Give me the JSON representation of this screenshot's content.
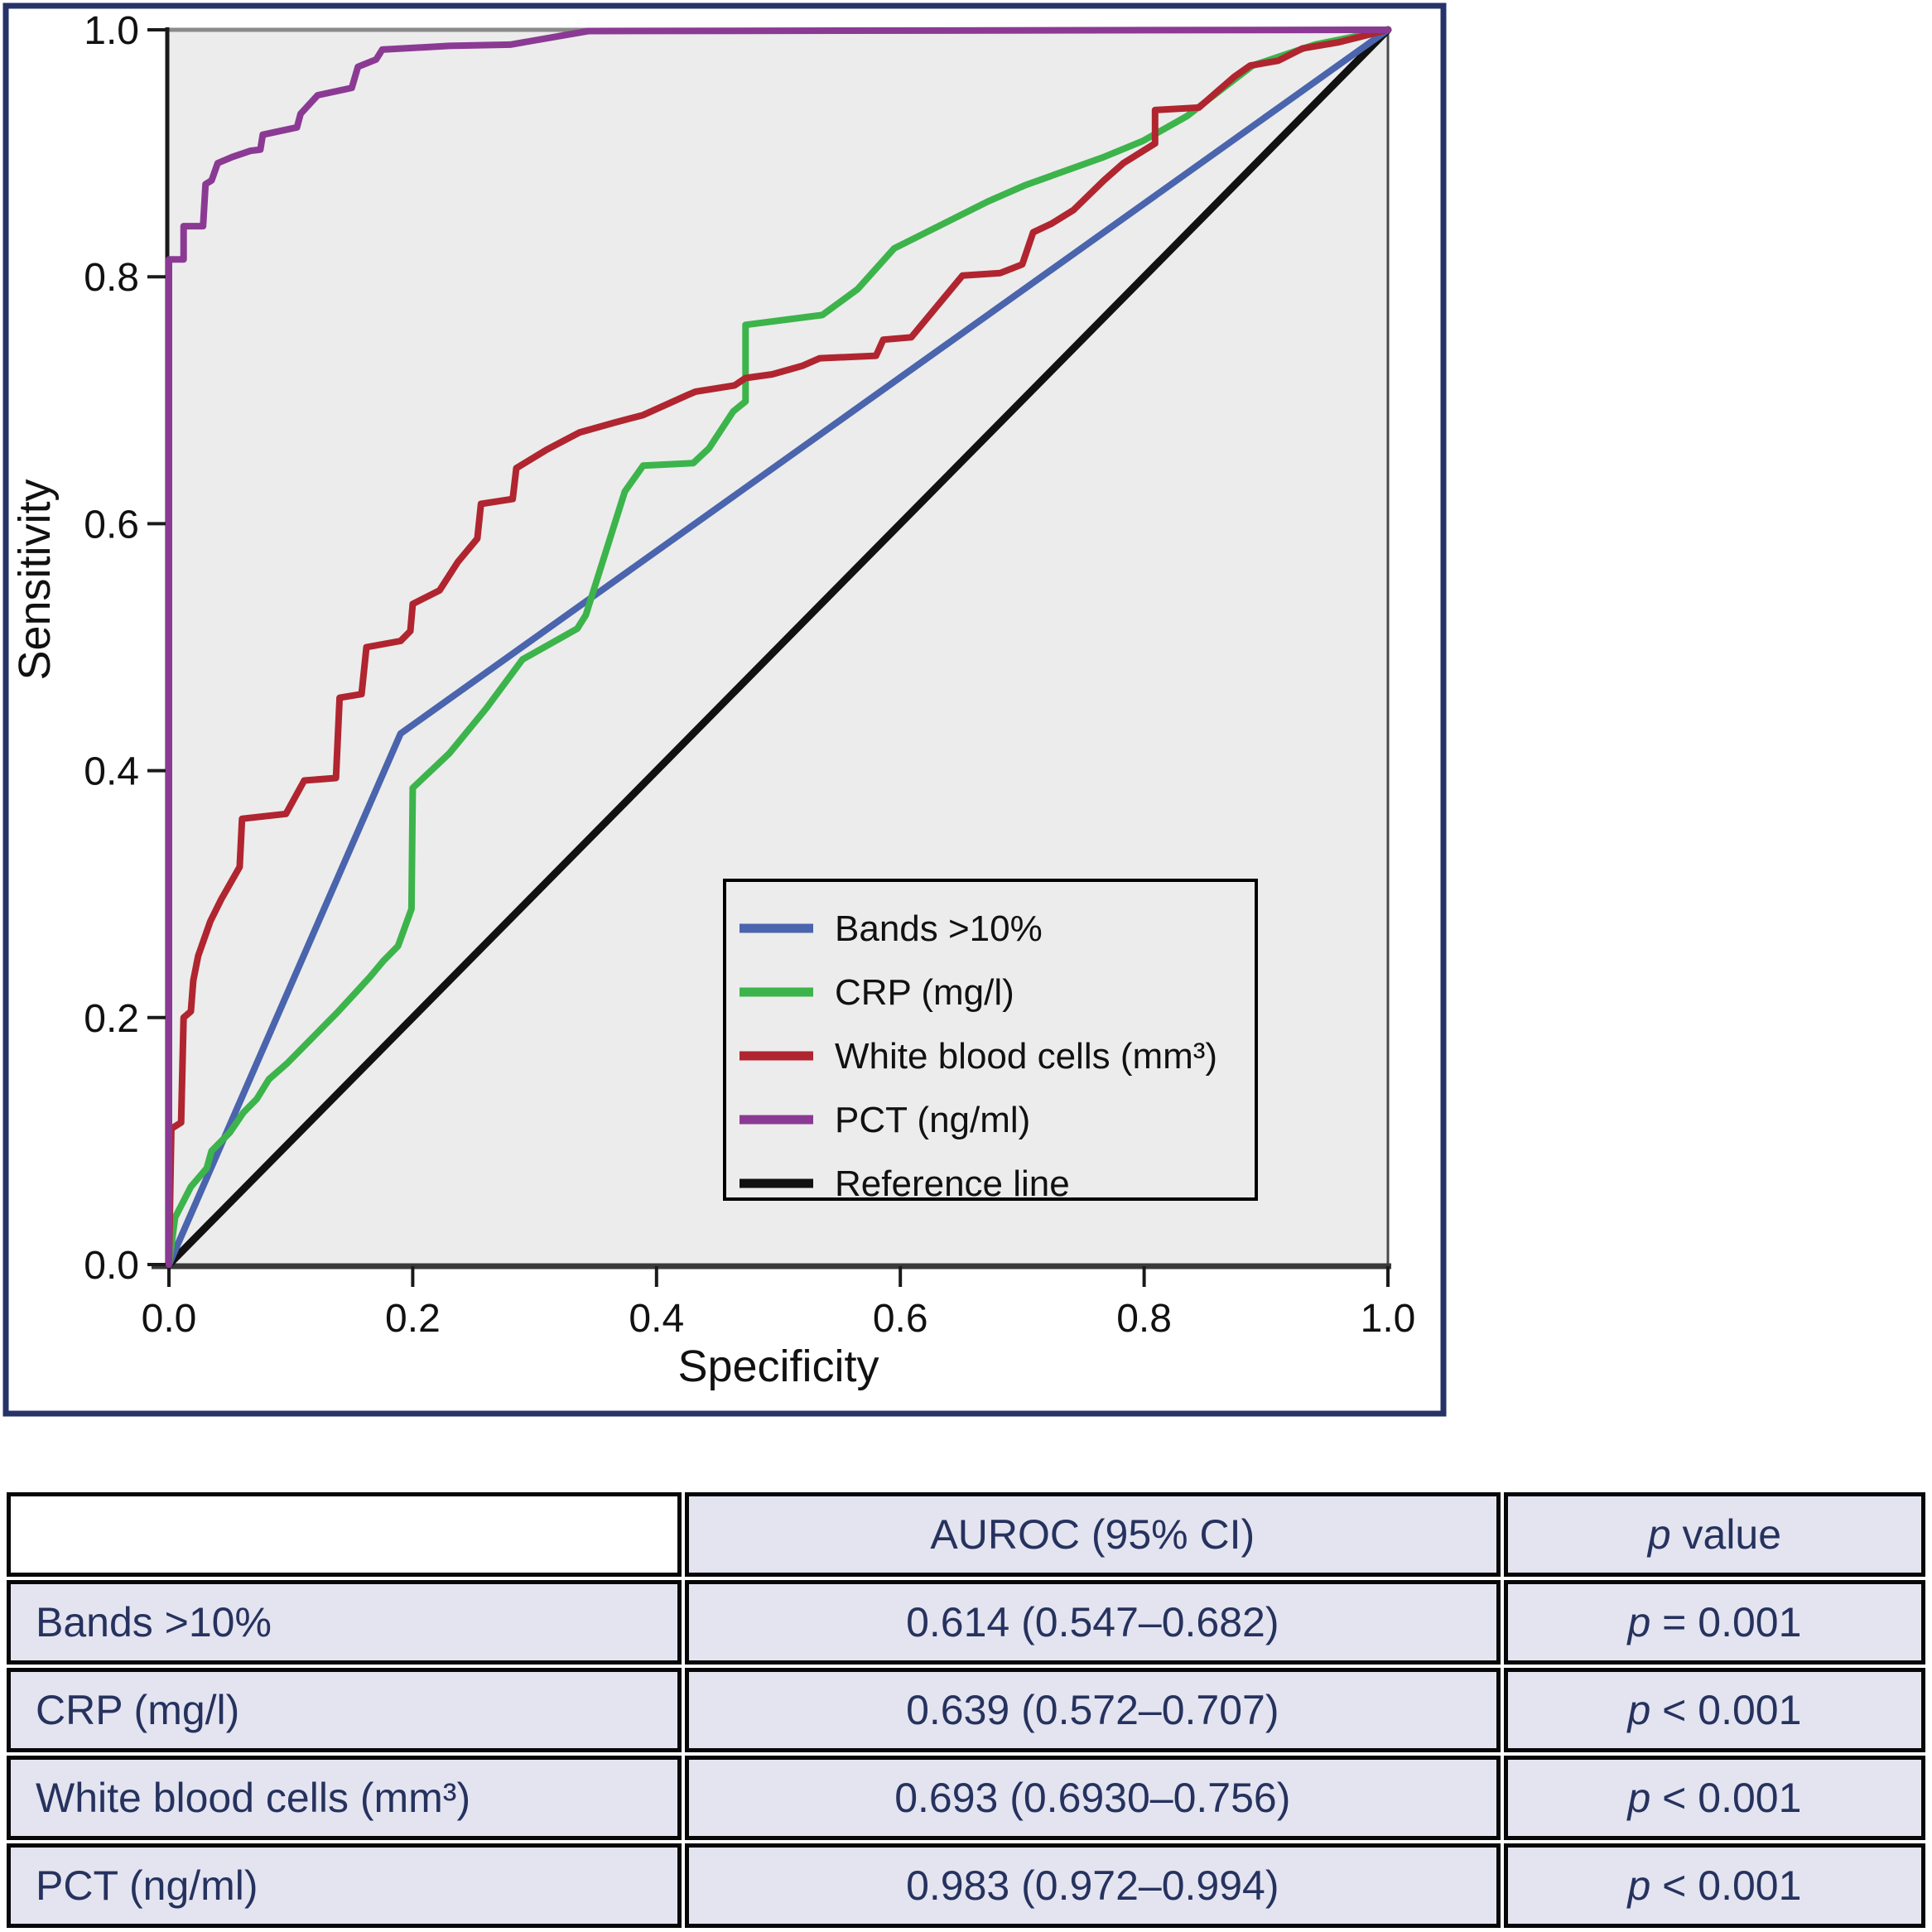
{
  "figure": {
    "x_axis": {
      "label": "Specificity",
      "ticks": [
        "0.0",
        "0.2",
        "0.4",
        "0.6",
        "0.8",
        "1.0"
      ]
    },
    "y_axis": {
      "label": "Sensitivity",
      "ticks": [
        "0.0",
        "0.2",
        "0.4",
        "0.6",
        "0.8",
        "1.0"
      ]
    },
    "legend": {
      "items": [
        {
          "label": "Bands >10%",
          "color": "#4a64ad"
        },
        {
          "label": "CRP (mg/l)",
          "color": "#3cb44b"
        },
        {
          "label": "White blood cells (mm³)",
          "color": "#b0252f"
        },
        {
          "label": "PCT (ng/ml)",
          "color": "#8b3a94"
        },
        {
          "label": "Reference line",
          "color": "#111111"
        }
      ]
    }
  },
  "chart_data": {
    "type": "line",
    "title": "",
    "xlabel": "Specificity",
    "ylabel": "Sensitivity",
    "xlim": [
      0,
      1
    ],
    "ylim": [
      0,
      1
    ],
    "grid": false,
    "legend_position": "lower-right-inside",
    "series": [
      {
        "id": "reference",
        "name": "Reference line",
        "color": "#111111",
        "width": 9,
        "points": [
          [
            0,
            0
          ],
          [
            1,
            1
          ]
        ]
      },
      {
        "id": "bands",
        "name": "Bands >10%",
        "color": "#4a64ad",
        "width": 8,
        "points": [
          [
            0,
            0
          ],
          [
            0.19,
            0.43
          ],
          [
            1,
            1
          ]
        ]
      },
      {
        "id": "crp",
        "name": "CRP (mg/l)",
        "color": "#3cb44b",
        "width": 8,
        "points": [
          [
            0,
            0
          ],
          [
            0.005,
            0.038
          ],
          [
            0.018,
            0.063
          ],
          [
            0.031,
            0.078
          ],
          [
            0.035,
            0.092
          ],
          [
            0.05,
            0.107
          ],
          [
            0.061,
            0.123
          ],
          [
            0.072,
            0.134
          ],
          [
            0.082,
            0.15
          ],
          [
            0.097,
            0.163
          ],
          [
            0.108,
            0.174
          ],
          [
            0.124,
            0.19
          ],
          [
            0.138,
            0.204
          ],
          [
            0.152,
            0.219
          ],
          [
            0.165,
            0.233
          ],
          [
            0.176,
            0.246
          ],
          [
            0.188,
            0.258
          ],
          [
            0.199,
            0.288
          ],
          [
            0.2,
            0.386
          ],
          [
            0.215,
            0.4
          ],
          [
            0.23,
            0.414
          ],
          [
            0.26,
            0.45
          ],
          [
            0.29,
            0.49
          ],
          [
            0.335,
            0.515
          ],
          [
            0.342,
            0.526
          ],
          [
            0.374,
            0.626
          ],
          [
            0.389,
            0.647
          ],
          [
            0.43,
            0.649
          ],
          [
            0.443,
            0.661
          ],
          [
            0.463,
            0.691
          ],
          [
            0.473,
            0.699
          ],
          [
            0.473,
            0.761
          ],
          [
            0.536,
            0.769
          ],
          [
            0.565,
            0.79
          ],
          [
            0.595,
            0.823
          ],
          [
            0.672,
            0.861
          ],
          [
            0.702,
            0.874
          ],
          [
            0.767,
            0.897
          ],
          [
            0.799,
            0.91
          ],
          [
            0.835,
            0.93
          ],
          [
            0.86,
            0.949
          ],
          [
            0.889,
            0.971
          ],
          [
            0.94,
            0.988
          ],
          [
            1,
            1
          ]
        ]
      },
      {
        "id": "wbc",
        "name": "White blood cells (mm³)",
        "color": "#b0252f",
        "width": 8,
        "points": [
          [
            0,
            0
          ],
          [
            0.002,
            0.11
          ],
          [
            0.01,
            0.115
          ],
          [
            0.012,
            0.2
          ],
          [
            0.018,
            0.205
          ],
          [
            0.02,
            0.23
          ],
          [
            0.024,
            0.25
          ],
          [
            0.034,
            0.278
          ],
          [
            0.043,
            0.296
          ],
          [
            0.058,
            0.322
          ],
          [
            0.06,
            0.361
          ],
          [
            0.096,
            0.365
          ],
          [
            0.111,
            0.392
          ],
          [
            0.137,
            0.394
          ],
          [
            0.14,
            0.459
          ],
          [
            0.158,
            0.462
          ],
          [
            0.162,
            0.5
          ],
          [
            0.19,
            0.505
          ],
          [
            0.198,
            0.513
          ],
          [
            0.2,
            0.535
          ],
          [
            0.222,
            0.546
          ],
          [
            0.237,
            0.569
          ],
          [
            0.253,
            0.588
          ],
          [
            0.256,
            0.616
          ],
          [
            0.282,
            0.62
          ],
          [
            0.285,
            0.645
          ],
          [
            0.31,
            0.66
          ],
          [
            0.337,
            0.674
          ],
          [
            0.366,
            0.682
          ],
          [
            0.389,
            0.688
          ],
          [
            0.425,
            0.704
          ],
          [
            0.432,
            0.707
          ],
          [
            0.464,
            0.712
          ],
          [
            0.473,
            0.718
          ],
          [
            0.495,
            0.721
          ],
          [
            0.52,
            0.728
          ],
          [
            0.534,
            0.734
          ],
          [
            0.58,
            0.736
          ],
          [
            0.586,
            0.749
          ],
          [
            0.609,
            0.751
          ],
          [
            0.651,
            0.801
          ],
          [
            0.682,
            0.803
          ],
          [
            0.7,
            0.81
          ],
          [
            0.709,
            0.836
          ],
          [
            0.724,
            0.843
          ],
          [
            0.742,
            0.854
          ],
          [
            0.767,
            0.878
          ],
          [
            0.783,
            0.892
          ],
          [
            0.809,
            0.908
          ],
          [
            0.809,
            0.935
          ],
          [
            0.845,
            0.937
          ],
          [
            0.86,
            0.95
          ],
          [
            0.874,
            0.962
          ],
          [
            0.887,
            0.971
          ],
          [
            0.91,
            0.975
          ],
          [
            0.93,
            0.985
          ],
          [
            0.96,
            0.99
          ],
          [
            1,
            1
          ]
        ]
      },
      {
        "id": "pct",
        "name": "PCT (ng/ml)",
        "color": "#8b3a94",
        "width": 8,
        "points": [
          [
            0,
            0
          ],
          [
            0,
            0.814
          ],
          [
            0.012,
            0.814
          ],
          [
            0.012,
            0.841
          ],
          [
            0.028,
            0.841
          ],
          [
            0.03,
            0.875
          ],
          [
            0.035,
            0.878
          ],
          [
            0.04,
            0.892
          ],
          [
            0.052,
            0.897
          ],
          [
            0.067,
            0.902
          ],
          [
            0.075,
            0.903
          ],
          [
            0.077,
            0.915
          ],
          [
            0.105,
            0.921
          ],
          [
            0.108,
            0.932
          ],
          [
            0.122,
            0.947
          ],
          [
            0.15,
            0.953
          ],
          [
            0.155,
            0.97
          ],
          [
            0.17,
            0.976
          ],
          [
            0.175,
            0.984
          ],
          [
            0.23,
            0.987
          ],
          [
            0.28,
            0.988
          ],
          [
            0.344,
            0.999
          ],
          [
            1,
            1
          ]
        ]
      }
    ]
  },
  "table": {
    "headers": [
      "",
      "AUROC (95% CI)",
      "p value"
    ],
    "rows": [
      {
        "label": "Bands >10%",
        "auroc": "0.614 (0.547–0.682)",
        "p": "p = 0.001"
      },
      {
        "label": "CRP (mg/l)",
        "auroc": "0.639 (0.572–0.707)",
        "p": "p < 0.001"
      },
      {
        "label": "White blood cells (mm³)",
        "auroc": "0.693 (0.6930–0.756)",
        "p": "p < 0.001"
      },
      {
        "label": "PCT (ng/ml)",
        "auroc": "0.983 (0.972–0.994)",
        "p": "p < 0.001"
      }
    ]
  },
  "colors": {
    "bands_blue": "#4a64ad",
    "crp_green": "#3cb44b",
    "wbc_red": "#b0252f",
    "pct_purple": "#8b3a94",
    "reference_black": "#111111",
    "figure_border": "#253369",
    "plot_background": "#ececec",
    "table_cell_background": "#e3e4f0",
    "table_text": "#26325e",
    "frame_top_gray": "#8a8a8a",
    "axis_black": "#1a1a1a"
  }
}
